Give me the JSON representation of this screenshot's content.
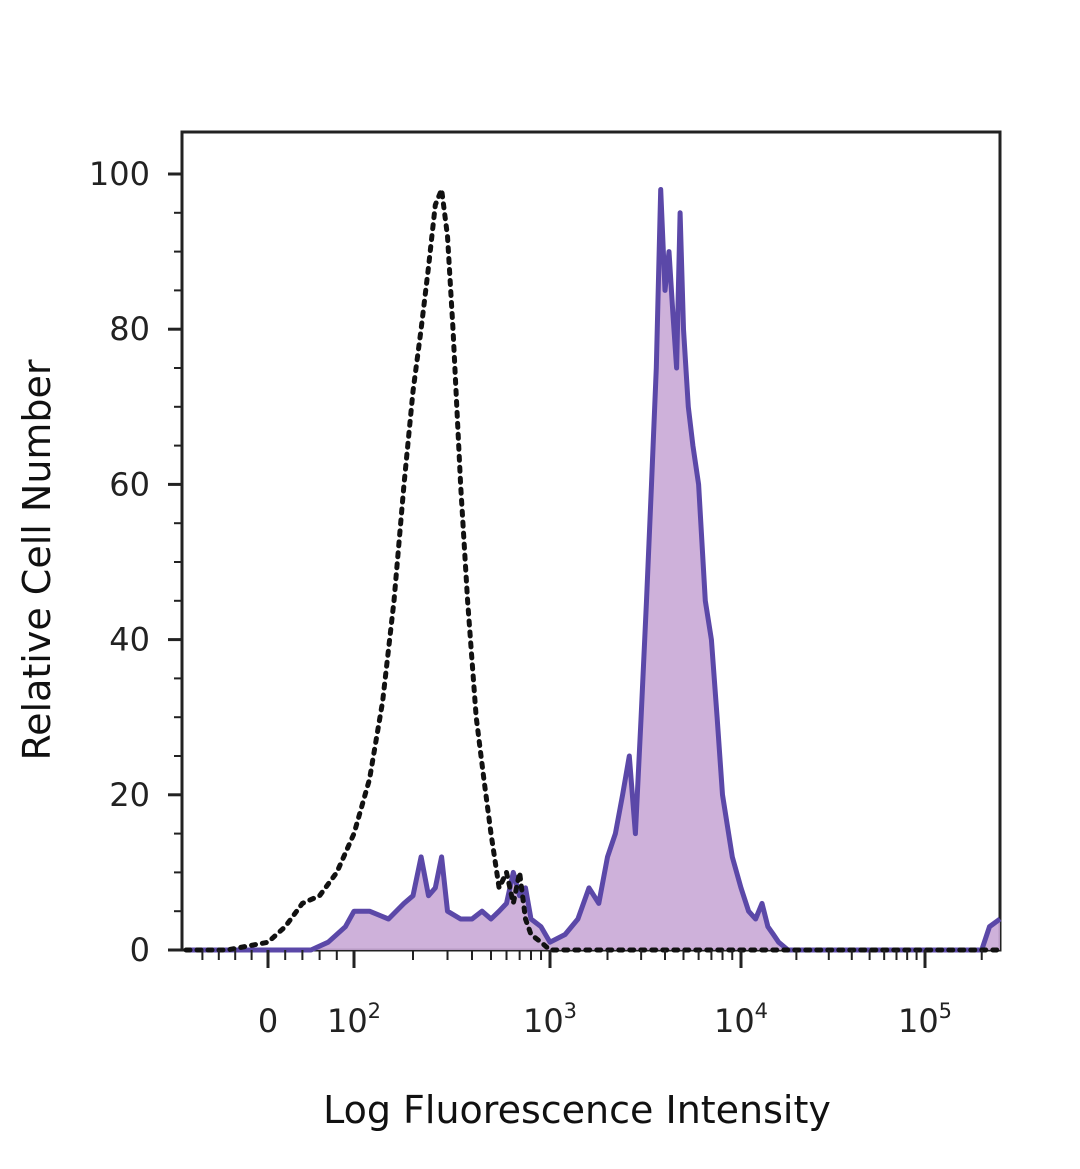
{
  "chart_data": {
    "type": "area",
    "xlabel": "Log Fluorescence Intensity",
    "ylabel": "Relative Cell Number",
    "ylim": [
      0,
      100
    ],
    "xscale": "biexponential",
    "xlim": [
      -100,
      250000
    ],
    "y_ticks": [
      0,
      20,
      40,
      60,
      80,
      100
    ],
    "x_ticks": [
      {
        "value": 0,
        "base": "0",
        "exp": ""
      },
      {
        "value": 100,
        "base": "10",
        "exp": "2"
      },
      {
        "value": 1000,
        "base": "10",
        "exp": "3"
      },
      {
        "value": 10000,
        "base": "10",
        "exp": "4"
      },
      {
        "value": 100000,
        "base": "10",
        "exp": "5"
      }
    ],
    "grid": false,
    "legend": "none",
    "series": [
      {
        "style": "dotted-outline",
        "color": "#111111",
        "x": [
          -100,
          -50,
          0,
          20,
          40,
          60,
          80,
          100,
          120,
          140,
          160,
          180,
          200,
          220,
          240,
          260,
          280,
          300,
          320,
          350,
          380,
          420,
          460,
          500,
          550,
          600,
          650,
          700,
          750,
          800,
          900,
          1000,
          1200,
          1500,
          2000,
          3000,
          5000,
          10000,
          50000,
          250000
        ],
        "y": [
          0,
          0,
          1,
          3,
          6,
          7,
          10,
          15,
          22,
          32,
          45,
          60,
          72,
          80,
          88,
          96,
          98,
          92,
          80,
          60,
          45,
          30,
          22,
          15,
          8,
          10,
          6,
          10,
          4,
          2,
          1,
          0,
          0,
          0,
          0,
          0,
          0,
          0,
          0,
          0
        ]
      },
      {
        "style": "filled",
        "fill": "#c9a9d6",
        "stroke": "#5b48a8",
        "x": [
          -100,
          0,
          50,
          70,
          90,
          100,
          120,
          150,
          180,
          200,
          220,
          240,
          260,
          280,
          300,
          350,
          400,
          450,
          500,
          550,
          600,
          650,
          700,
          750,
          800,
          900,
          1000,
          1200,
          1400,
          1600,
          1800,
          2000,
          2200,
          2400,
          2600,
          2800,
          3000,
          3200,
          3400,
          3600,
          3800,
          4000,
          4200,
          4400,
          4600,
          4800,
          5000,
          5300,
          5600,
          6000,
          6500,
          7000,
          7500,
          8000,
          9000,
          10000,
          11000,
          12000,
          13000,
          14000,
          15000,
          16000,
          18000,
          20000,
          40000,
          100000,
          200000,
          220000,
          250000
        ],
        "y": [
          0,
          0,
          0,
          1,
          3,
          5,
          5,
          4,
          6,
          7,
          12,
          7,
          8,
          12,
          5,
          4,
          4,
          5,
          4,
          5,
          6,
          10,
          7,
          8,
          4,
          3,
          1,
          2,
          4,
          8,
          6,
          12,
          15,
          20,
          25,
          15,
          30,
          45,
          60,
          75,
          98,
          85,
          90,
          82,
          75,
          95,
          80,
          70,
          65,
          60,
          45,
          40,
          30,
          20,
          12,
          8,
          5,
          4,
          6,
          3,
          2,
          1,
          0,
          0,
          0,
          0,
          0,
          3,
          4
        ]
      }
    ]
  }
}
